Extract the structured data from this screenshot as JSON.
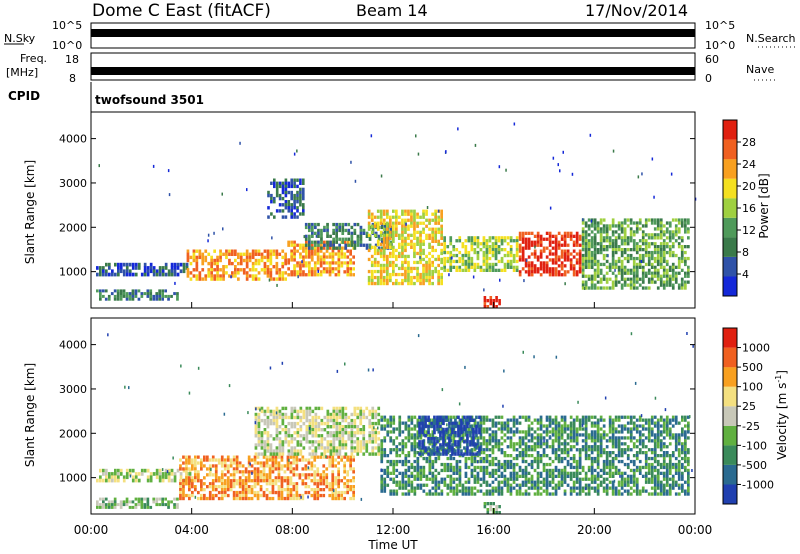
{
  "header": {
    "radar": "Dome C East (fitACF)",
    "beam": "Beam 14",
    "date": "17/Nov/2014"
  },
  "strip_noise": {
    "left_label": "N.Sky",
    "right_label": "N.Search",
    "ticks_left": [
      "10^5",
      "10^0"
    ],
    "ticks_right": [
      "10^5",
      "10^0"
    ]
  },
  "strip_freq": {
    "left_label_1": "Freq.",
    "left_label_2": "[MHz]",
    "right_label": "Nave",
    "ticks_left": [
      "18",
      "8"
    ],
    "ticks_right": [
      "60",
      "0"
    ]
  },
  "strip_cpid": {
    "left_label": "CPID",
    "program": "twofsound 3501"
  },
  "x_axis": {
    "label": "Time UT",
    "ticks": [
      "00:00",
      "04:00",
      "08:00",
      "12:00",
      "16:00",
      "20:00",
      "00:00"
    ]
  },
  "power_panel": {
    "ylabel": "Slant Range [km]",
    "yticks": [
      "1000",
      "2000",
      "3000",
      "4000"
    ],
    "colorbar_label": "Power [dB]",
    "colorbar_ticks": [
      "4",
      "8",
      "12",
      "16",
      "20",
      "24",
      "28"
    ],
    "colors": [
      "#1428d8",
      "#2f52a8",
      "#3a7a4a",
      "#4f9a5a",
      "#9fd040",
      "#f4e020",
      "#f8a020",
      "#f06020",
      "#e02010"
    ]
  },
  "velocity_panel": {
    "ylabel": "Slant Range [km]",
    "yticks": [
      "1000",
      "2000",
      "3000",
      "4000"
    ],
    "colorbar_label": "Velocity [m s",
    "colorbar_label_sup": "-1",
    "colorbar_label_end": "]",
    "colorbar_ticks": [
      "1000",
      "500",
      "100",
      "25",
      "-25",
      "-100",
      "-500",
      "-1000"
    ],
    "colors": [
      "#2040b0",
      "#2a6a90",
      "#3a8a5a",
      "#60b040",
      "#c8c8b8",
      "#f4e080",
      "#f8a020",
      "#f06020",
      "#e02010"
    ]
  },
  "chart_data": {
    "type": "heatmap",
    "x_range_hours": [
      0,
      24
    ],
    "y_range_km": [
      180,
      4600
    ],
    "power_features": [
      {
        "t0": 0.2,
        "t1": 4.0,
        "r0": 900,
        "r1": 1200,
        "level": 1
      },
      {
        "t0": 0.2,
        "t1": 3.5,
        "r0": 350,
        "r1": 600,
        "level": 2
      },
      {
        "t0": 3.8,
        "t1": 7.8,
        "r0": 800,
        "r1": 1500,
        "level": 6
      },
      {
        "t0": 7.8,
        "t1": 10.5,
        "r0": 900,
        "r1": 1700,
        "level": 6
      },
      {
        "t0": 7.0,
        "t1": 8.5,
        "r0": 2200,
        "r1": 3100,
        "level": 1
      },
      {
        "t0": 8.5,
        "t1": 12.0,
        "r0": 1500,
        "r1": 2100,
        "level": 2
      },
      {
        "t0": 11.0,
        "t1": 14.0,
        "r0": 700,
        "r1": 2400,
        "level": 5
      },
      {
        "t0": 14.0,
        "t1": 17.0,
        "r0": 1000,
        "r1": 1800,
        "level": 4
      },
      {
        "t0": 17.0,
        "t1": 19.5,
        "r0": 900,
        "r1": 1900,
        "level": 8
      },
      {
        "t0": 19.5,
        "t1": 23.8,
        "r0": 600,
        "r1": 2200,
        "level": 3
      },
      {
        "t0": 15.6,
        "t1": 16.3,
        "r0": 180,
        "r1": 450,
        "level": 8
      }
    ],
    "velocity_features": [
      {
        "t0": 0.2,
        "t1": 3.5,
        "r0": 300,
        "r1": 550,
        "level": 3
      },
      {
        "t0": 0.2,
        "t1": 4.0,
        "r0": 900,
        "r1": 1200,
        "level": 4
      },
      {
        "t0": 3.5,
        "t1": 10.5,
        "r0": 500,
        "r1": 1500,
        "level": 6
      },
      {
        "t0": 6.5,
        "t1": 11.5,
        "r0": 1500,
        "r1": 2600,
        "level": 4
      },
      {
        "t0": 11.5,
        "t1": 23.8,
        "r0": 600,
        "r1": 2400,
        "level": 2
      },
      {
        "t0": 13.0,
        "t1": 15.5,
        "r0": 1500,
        "r1": 2400,
        "level": 0
      },
      {
        "t0": 15.6,
        "t1": 16.3,
        "r0": 180,
        "r1": 450,
        "level": 3
      }
    ]
  }
}
